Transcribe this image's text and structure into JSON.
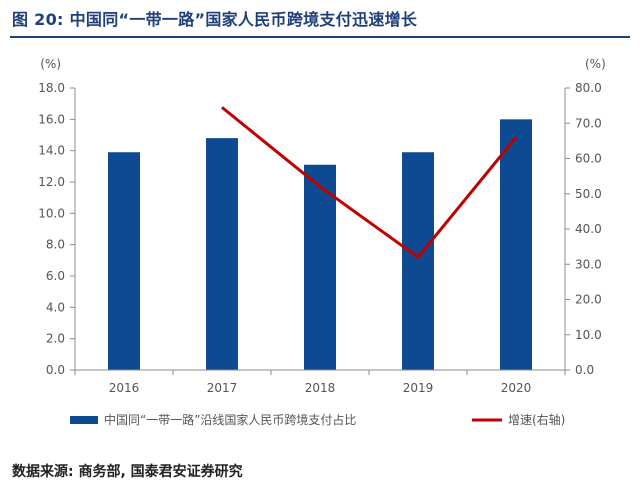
{
  "figure": {
    "title": "图 20: 中国同“一带一路”国家人民币跨境支付迅速增长",
    "source": "数据来源: 商务部, 国泰君安证券研究"
  },
  "chart_data": {
    "type": "bar",
    "categories": [
      "2016",
      "2017",
      "2018",
      "2019",
      "2020"
    ],
    "series": [
      {
        "name": "中国同“一带一路”沿线国家人民币跨境支付占比",
        "type": "bar",
        "axis": "left",
        "color": "#0d4a92",
        "values": [
          13.9,
          14.8,
          13.1,
          13.9,
          16.0
        ]
      },
      {
        "name": "增速(右轴)",
        "type": "line",
        "axis": "right",
        "color": "#c00000",
        "values": [
          null,
          74.5,
          52.0,
          32.0,
          66.0
        ]
      }
    ],
    "y_left": {
      "unit": "(%)",
      "min": 0,
      "max": 18,
      "step": 2,
      "tick_labels": [
        "0.0",
        "2.0",
        "4.0",
        "6.0",
        "8.0",
        "10.0",
        "12.0",
        "14.0",
        "16.0",
        "18.0"
      ]
    },
    "y_right": {
      "unit": "(%)",
      "min": 0,
      "max": 80,
      "step": 10,
      "tick_labels": [
        "0.0",
        "10.0",
        "20.0",
        "30.0",
        "40.0",
        "50.0",
        "60.0",
        "70.0",
        "80.0"
      ]
    },
    "grid": false,
    "legend_position": "bottom"
  }
}
